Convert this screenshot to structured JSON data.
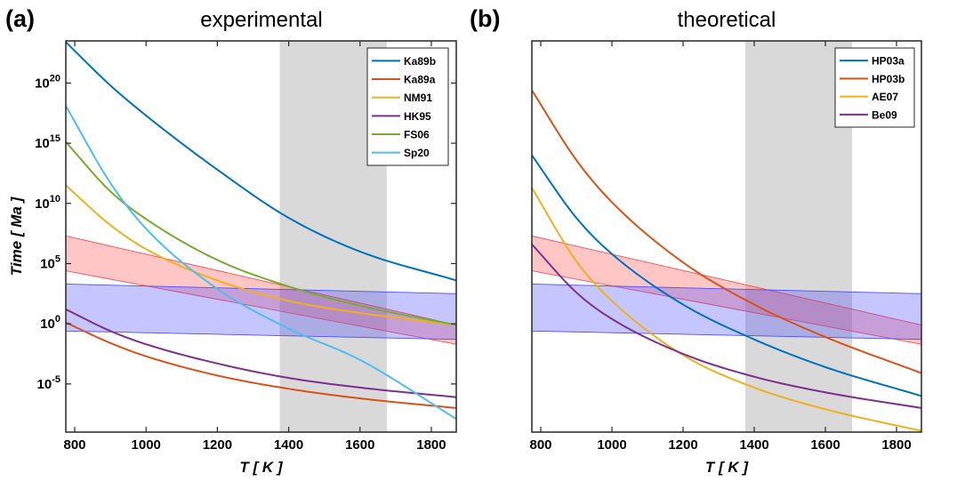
{
  "chart_data": [
    {
      "panel_label": "(a)",
      "type": "line",
      "title": "experimental",
      "xlabel": "T [ K ]",
      "ylabel": "Time [ Ma ]",
      "xlim": [
        775,
        1870
      ],
      "ylim_log10": [
        -9,
        23.5
      ],
      "yscale": "log",
      "xticks": [
        800,
        1000,
        1200,
        1400,
        1600,
        1800
      ],
      "yticks": [
        {
          "exp": -5,
          "label": "10-5"
        },
        {
          "exp": 0,
          "label": "100"
        },
        {
          "exp": 5,
          "label": "105"
        },
        {
          "exp": 10,
          "label": "1010"
        },
        {
          "exp": 15,
          "label": "1015"
        },
        {
          "exp": 20,
          "label": "1020"
        }
      ],
      "grid": false,
      "legend_position": "top-right",
      "shaded_region": {
        "x": [
          1375,
          1675
        ],
        "color": "#d9d9d9"
      },
      "bands": [
        {
          "color": "#ff4d4d",
          "x": [
            775,
            1870
          ],
          "upper_log10": [
            7.3,
            -0.1
          ],
          "lower_log10": [
            4.4,
            -1.7
          ]
        },
        {
          "color": "#4d4dff",
          "x": [
            775,
            1870
          ],
          "upper_log10": [
            3.3,
            2.5
          ],
          "lower_log10": [
            -0.6,
            -1.3
          ]
        }
      ],
      "series": [
        {
          "name": "Ka89b",
          "color": "#0072BD",
          "x": [
            775,
            900,
            1000,
            1200,
            1400,
            1600,
            1870
          ],
          "y_log10": [
            23.4,
            19.8,
            17.3,
            12.8,
            8.8,
            6.0,
            3.6
          ]
        },
        {
          "name": "Ka89a",
          "color": "#D95319",
          "x": [
            775,
            900,
            1000,
            1200,
            1400,
            1600,
            1870
          ],
          "y_log10": [
            0.1,
            -1.6,
            -2.7,
            -4.3,
            -5.4,
            -6.2,
            -7.0
          ]
        },
        {
          "name": "NM91",
          "color": "#EDB120",
          "x": [
            775,
            900,
            1000,
            1200,
            1400,
            1600,
            1870
          ],
          "y_log10": [
            11.5,
            8.2,
            6.2,
            3.6,
            1.9,
            0.9,
            -0.1
          ]
        },
        {
          "name": "HK95",
          "color": "#7E2F8E",
          "x": [
            775,
            900,
            1000,
            1200,
            1400,
            1600,
            1870
          ],
          "y_log10": [
            1.2,
            -0.6,
            -1.7,
            -3.3,
            -4.5,
            -5.3,
            -6.1
          ]
        },
        {
          "name": "FS06",
          "color": "#77AC30",
          "x": [
            775,
            900,
            1000,
            1200,
            1400,
            1600,
            1870
          ],
          "y_log10": [
            15.1,
            11.0,
            8.7,
            5.3,
            3.1,
            1.5,
            -0.1
          ]
        },
        {
          "name": "Sp20",
          "color": "#4DBEEE",
          "x": [
            775,
            900,
            1000,
            1200,
            1400,
            1600,
            1870
          ],
          "y_log10": [
            18.1,
            11.7,
            7.9,
            2.9,
            -0.4,
            -3.0,
            -7.9
          ]
        }
      ]
    },
    {
      "panel_label": "(b)",
      "type": "line",
      "title": "theoretical",
      "xlabel": "T [ K ]",
      "ylabel": "",
      "xlim": [
        775,
        1870
      ],
      "ylim_log10": [
        -9,
        23.5
      ],
      "yscale": "log",
      "xticks": [
        800,
        1000,
        1200,
        1400,
        1600,
        1800
      ],
      "yticks": [],
      "grid": false,
      "legend_position": "top-right",
      "shaded_region": {
        "x": [
          1375,
          1675
        ],
        "color": "#d9d9d9"
      },
      "bands": [
        {
          "color": "#ff4d4d",
          "x": [
            775,
            1870
          ],
          "upper_log10": [
            7.3,
            -0.1
          ],
          "lower_log10": [
            4.4,
            -1.7
          ]
        },
        {
          "color": "#4d4dff",
          "x": [
            775,
            1870
          ],
          "upper_log10": [
            3.3,
            2.5
          ],
          "lower_log10": [
            -0.6,
            -1.3
          ]
        }
      ],
      "series": [
        {
          "name": "HP03a",
          "color": "#0072BD",
          "x": [
            775,
            900,
            1000,
            1200,
            1400,
            1600,
            1870
          ],
          "y_log10": [
            14.0,
            8.8,
            5.8,
            1.6,
            -1.3,
            -3.6,
            -6.0
          ]
        },
        {
          "name": "HP03b",
          "color": "#D95319",
          "x": [
            775,
            900,
            1000,
            1200,
            1400,
            1600,
            1870
          ],
          "y_log10": [
            19.4,
            13.6,
            10.1,
            5.1,
            1.6,
            -1.1,
            -4.1
          ]
        },
        {
          "name": "AE07",
          "color": "#EDB120",
          "x": [
            775,
            900,
            1000,
            1200,
            1400,
            1600,
            1870
          ],
          "y_log10": [
            11.3,
            5.2,
            1.9,
            -2.6,
            -5.3,
            -7.1,
            -8.9
          ]
        },
        {
          "name": "Be09",
          "color": "#7E2F8E",
          "x": [
            775,
            900,
            1000,
            1200,
            1400,
            1600,
            1870
          ],
          "y_log10": [
            6.6,
            2.6,
            0.4,
            -2.5,
            -4.4,
            -5.7,
            -7.0
          ]
        }
      ]
    }
  ]
}
